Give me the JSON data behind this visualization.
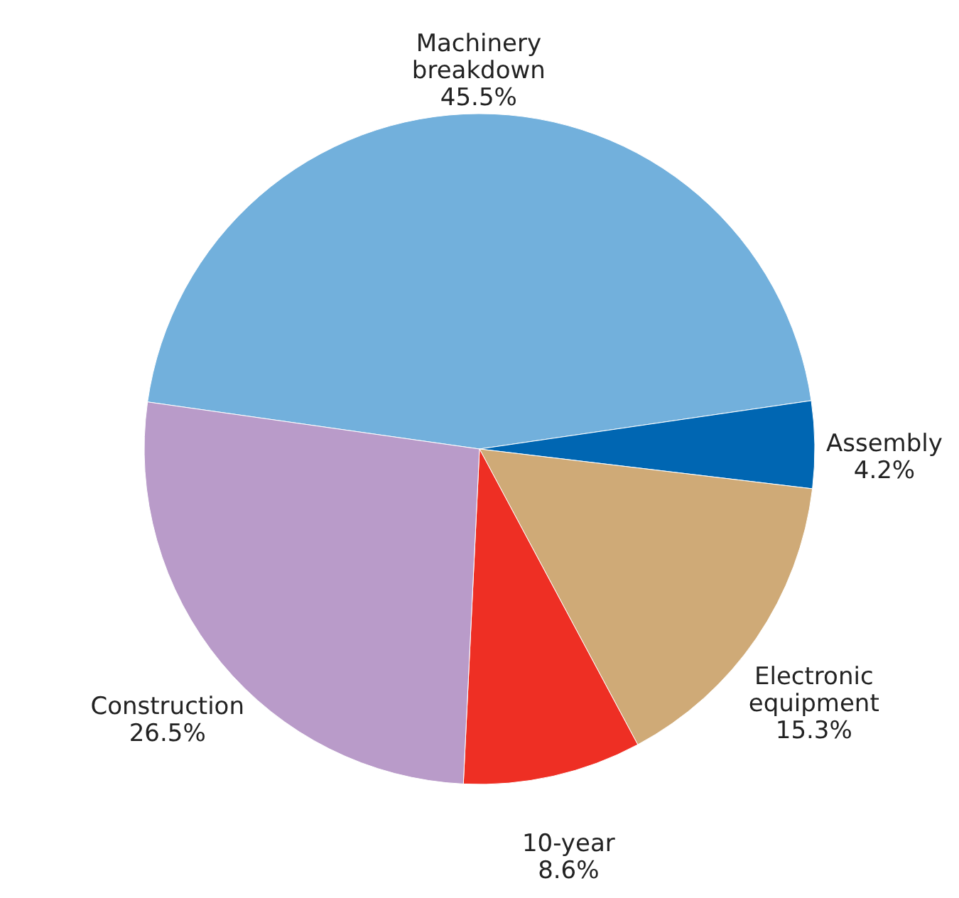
{
  "chart_data": {
    "type": "pie",
    "categories": [
      "Machinery breakdown",
      "Assembly",
      "Electronic equipment",
      "10-year",
      "Construction"
    ],
    "values": [
      45.5,
      4.2,
      15.3,
      8.6,
      26.5
    ],
    "value_labels": [
      "45.5%",
      "4.2%",
      "15.3%",
      "8.6%",
      "26.5%"
    ],
    "colors": [
      "#72b0dc",
      "#0066b2",
      "#cfaa77",
      "#ee2f24",
      "#b99bc9"
    ]
  }
}
